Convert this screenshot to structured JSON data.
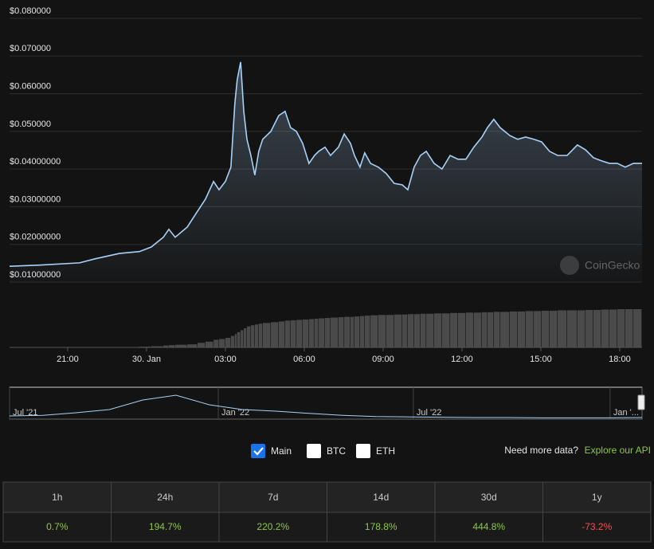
{
  "chart_data": {
    "type": "area",
    "x": [
      18.79,
      19.94,
      21.45,
      22.06,
      22.97,
      23.73,
      24.18,
      24.64,
      24.85,
      25.09,
      25.55,
      25.94,
      26.24,
      26.55,
      26.76,
      27.0,
      27.21,
      27.36,
      27.45,
      27.58,
      27.7,
      27.82,
      27.97,
      28.12,
      28.27,
      28.42,
      28.73,
      29.03,
      29.27,
      29.48,
      29.7,
      29.94,
      30.18,
      30.39,
      30.55,
      30.79,
      31.0,
      31.3,
      31.52,
      31.76,
      31.91,
      32.12,
      32.3,
      32.52,
      32.82,
      33.12,
      33.42,
      33.73,
      33.94,
      34.18,
      34.42,
      34.64,
      34.94,
      35.24,
      35.55,
      35.85,
      36.15,
      36.45,
      36.76,
      36.97,
      37.21,
      37.45,
      37.82,
      38.12,
      38.42,
      38.73,
      39.03,
      39.33,
      39.64,
      40.0,
      40.39,
      40.7,
      41.0,
      41.3,
      41.61,
      41.91,
      42.21,
      42.52,
      42.85
    ],
    "series": [
      {
        "color": "#a9d1f7",
        "values": [
          0.0142,
          0.0145,
          0.0151,
          0.0162,
          0.0176,
          0.0181,
          0.0193,
          0.0219,
          0.024,
          0.0219,
          0.0246,
          0.0288,
          0.032,
          0.0367,
          0.0345,
          0.0367,
          0.0405,
          0.0574,
          0.0637,
          0.0684,
          0.0553,
          0.0479,
          0.0436,
          0.0384,
          0.0447,
          0.0479,
          0.05,
          0.0542,
          0.0553,
          0.051,
          0.05,
          0.0468,
          0.0415,
          0.0436,
          0.0447,
          0.0458,
          0.0436,
          0.0458,
          0.0493,
          0.0468,
          0.0436,
          0.0405,
          0.0443,
          0.0415,
          0.0405,
          0.0388,
          0.0362,
          0.0358,
          0.0345,
          0.0405,
          0.0436,
          0.0447,
          0.0415,
          0.04,
          0.0436,
          0.0426,
          0.0426,
          0.0458,
          0.0485,
          0.051,
          0.0532,
          0.051,
          0.0489,
          0.0479,
          0.0485,
          0.0479,
          0.0472,
          0.0447,
          0.0436,
          0.0436,
          0.0464,
          0.0451,
          0.043,
          0.0422,
          0.0415,
          0.0415,
          0.0405,
          0.0415,
          0.0415
        ]
      }
    ],
    "volume": {
      "color": "#4a4a4a",
      "vlim": [
        0,
        1
      ],
      "values": [
        0,
        0,
        0,
        0,
        0,
        0.02,
        0.03,
        0.05,
        0.06,
        0.07,
        0.08,
        0.12,
        0.15,
        0.2,
        0.22,
        0.25,
        0.3,
        0.35,
        0.4,
        0.45,
        0.5,
        0.55,
        0.58,
        0.6,
        0.62,
        0.64,
        0.66,
        0.68,
        0.7,
        0.71,
        0.72,
        0.73,
        0.74,
        0.75,
        0.76,
        0.77,
        0.78,
        0.79,
        0.8,
        0.8,
        0.81,
        0.82,
        0.83,
        0.84,
        0.85,
        0.85,
        0.86,
        0.86,
        0.87,
        0.87,
        0.88,
        0.88,
        0.89,
        0.89,
        0.9,
        0.9,
        0.91,
        0.91,
        0.92,
        0.92,
        0.93,
        0.93,
        0.94,
        0.94,
        0.95,
        0.95,
        0.96,
        0.96,
        0.97,
        0.97,
        0.97,
        0.98,
        0.98,
        0.99,
        0.99,
        1,
        1,
        1
      ]
    },
    "xlim": [
      18.79,
      42.85
    ],
    "xticks": [
      {
        "value": 21,
        "label": "21:00"
      },
      {
        "value": 24,
        "label": "30. Jan"
      },
      {
        "value": 27,
        "label": "03:00"
      },
      {
        "value": 30,
        "label": "06:00"
      },
      {
        "value": 33,
        "label": "09:00"
      },
      {
        "value": 36,
        "label": "12:00"
      },
      {
        "value": 39,
        "label": "15:00"
      },
      {
        "value": 42,
        "label": "18:00"
      }
    ],
    "ylim": [
      0.01,
      0.08
    ],
    "yticks": [
      {
        "value": 0.01,
        "label": "$0.01000000"
      },
      {
        "value": 0.02,
        "label": "$0.02000000"
      },
      {
        "value": 0.03,
        "label": "$0.03000000"
      },
      {
        "value": 0.04,
        "label": "$0.04000000"
      },
      {
        "value": 0.05,
        "label": "$0.050000"
      },
      {
        "value": 0.06,
        "label": "$0.060000"
      },
      {
        "value": 0.07,
        "label": "$0.070000"
      },
      {
        "value": 0.08,
        "label": "$0.080000"
      }
    ],
    "grid": true,
    "watermark": "CoinGecko"
  },
  "navigator": {
    "color": "#a9d1f7",
    "ylim": [
      0,
      1
    ],
    "xlim": [
      0,
      19
    ],
    "values": [
      0.1,
      0.12,
      0.2,
      0.3,
      0.6,
      0.75,
      0.45,
      0.3,
      0.25,
      0.18,
      0.12,
      0.08,
      0.07,
      0.06,
      0.05,
      0.05,
      0.04,
      0.04,
      0.04,
      0.05
    ],
    "xticks": [
      {
        "value": 0,
        "label": "Jul '21"
      },
      {
        "value": 6.27,
        "label": "Jan '22"
      },
      {
        "value": 12.13,
        "label": "Jul '22"
      },
      {
        "value": 18.04,
        "label": "Jan '..."
      }
    ]
  },
  "controls": [
    {
      "label": "Main",
      "checked": true
    },
    {
      "label": "BTC",
      "checked": false
    },
    {
      "label": "ETH",
      "checked": false
    }
  ],
  "api": {
    "prompt": "Need more data?",
    "link": "Explore our API"
  },
  "table": {
    "headers": [
      "1h",
      "24h",
      "7d",
      "14d",
      "30d",
      "1y"
    ],
    "rows": [
      [
        "0.7%",
        "194.7%",
        "220.2%",
        "178.8%",
        "444.8%",
        "-73.2%"
      ]
    ]
  }
}
